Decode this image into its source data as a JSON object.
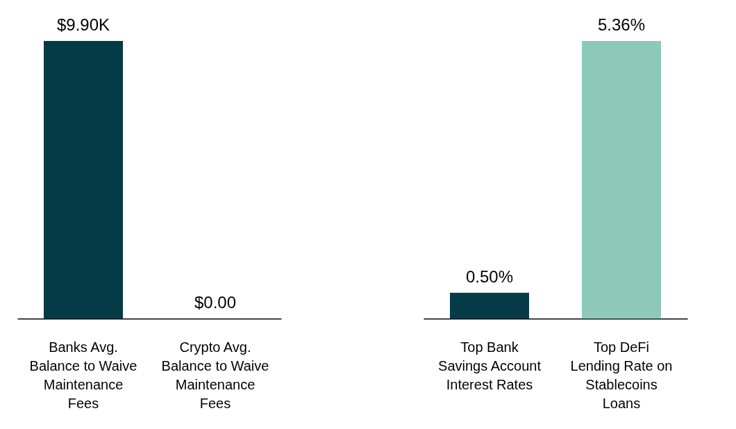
{
  "chart_data": [
    {
      "type": "bar",
      "categories": [
        "Banks Avg. Balance to Waive Maintenance Fees",
        "Crypto Avg. Balance to Waive Maintenance Fees"
      ],
      "values": [
        9900,
        0
      ],
      "value_labels": [
        "$9.90K",
        "$0.00"
      ],
      "color": "#053a47"
    },
    {
      "type": "bar",
      "categories": [
        "Top Bank Savings Account Interest Rates",
        "Top DeFi Lending Rate on Stablecoins Loans"
      ],
      "values": [
        0.5,
        5.36
      ],
      "value_labels": [
        "0.50%",
        "5.36%"
      ],
      "colors": [
        "#053a47",
        "#8cc9b8"
      ]
    }
  ]
}
